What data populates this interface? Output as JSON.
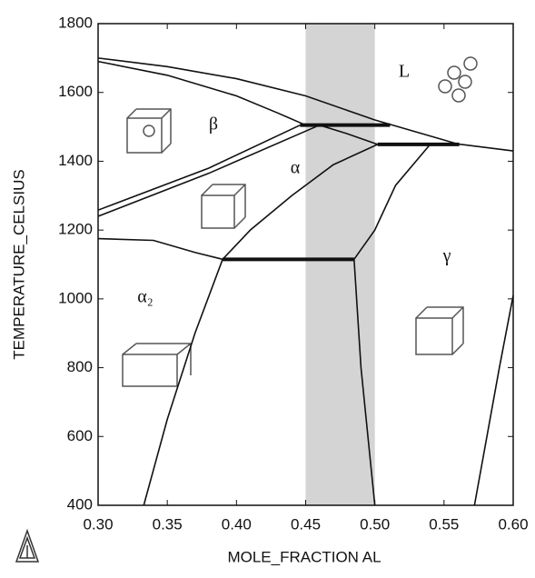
{
  "chart_data": {
    "type": "line",
    "x_label": "MOLE_FRACTION AL",
    "y_label": "TEMPERATURE_CELSIUS",
    "xlim": [
      0.3,
      0.6
    ],
    "ylim": [
      400,
      1800
    ],
    "xticks": [
      {
        "value": 0.3,
        "label": "0.30"
      },
      0.35,
      {
        "value": 0.4,
        "label": "0.40"
      },
      0.45,
      {
        "value": 0.5,
        "label": "0.50"
      },
      0.55,
      {
        "value": 0.6,
        "label": "0.60"
      }
    ],
    "yticks": [
      400,
      600,
      800,
      1000,
      1200,
      1400,
      1600,
      1800
    ],
    "grid": false,
    "highlight_xrange": [
      0.45,
      0.5
    ],
    "highlight_color": "#c9c9c9",
    "phase_labels": [
      "L",
      "β",
      "α",
      "γ",
      "α₂"
    ],
    "series": [
      {
        "color": "#111111",
        "x": [
          0.3,
          0.35,
          0.4,
          0.45,
          0.5,
          0.56,
          0.6
        ],
        "values": [
          1700,
          1675,
          1640,
          1590,
          1520,
          1450,
          1430
        ]
      },
      {
        "color": "#111111",
        "x": [
          0.3,
          0.35,
          0.4,
          0.43,
          0.45
        ],
        "values": [
          1690,
          1650,
          1590,
          1540,
          1505
        ]
      },
      {
        "color": "#111111",
        "style": "bold",
        "x": [
          0.446,
          0.511
        ],
        "values": [
          1505,
          1505
        ]
      },
      {
        "color": "#111111",
        "x": [
          0.3,
          0.38,
          0.446
        ],
        "values": [
          1258,
          1380,
          1505
        ]
      },
      {
        "color": "#111111",
        "x": [
          0.3,
          0.38,
          0.46
        ],
        "values": [
          1240,
          1365,
          1505
        ]
      },
      {
        "color": "#111111",
        "x": [
          0.46,
          0.48,
          0.502
        ],
        "values": [
          1505,
          1480,
          1449
        ]
      },
      {
        "color": "#111111",
        "style": "bold",
        "x": [
          0.502,
          0.561
        ],
        "values": [
          1449,
          1449
        ]
      },
      {
        "color": "#111111",
        "x": [
          0.502,
          0.47,
          0.44,
          0.41,
          0.39
        ],
        "values": [
          1449,
          1390,
          1300,
          1200,
          1115
        ]
      },
      {
        "color": "#111111",
        "x": [
          0.54,
          0.515,
          0.5,
          0.485,
          0.49,
          0.5
        ],
        "values": [
          1449,
          1330,
          1200,
          1115,
          800,
          400
        ]
      },
      {
        "color": "#111111",
        "style": "bold",
        "x": [
          0.39,
          0.485
        ],
        "values": [
          1115,
          1115
        ]
      },
      {
        "color": "#111111",
        "x": [
          0.3,
          0.34,
          0.37,
          0.39
        ],
        "values": [
          1175,
          1170,
          1135,
          1115
        ]
      },
      {
        "color": "#111111",
        "x": [
          0.39,
          0.37,
          0.35,
          0.333
        ],
        "values": [
          1115,
          900,
          650,
          400
        ]
      },
      {
        "color": "#111111",
        "x": [
          0.572,
          0.59,
          0.6
        ],
        "values": [
          400,
          800,
          1010
        ]
      }
    ]
  }
}
